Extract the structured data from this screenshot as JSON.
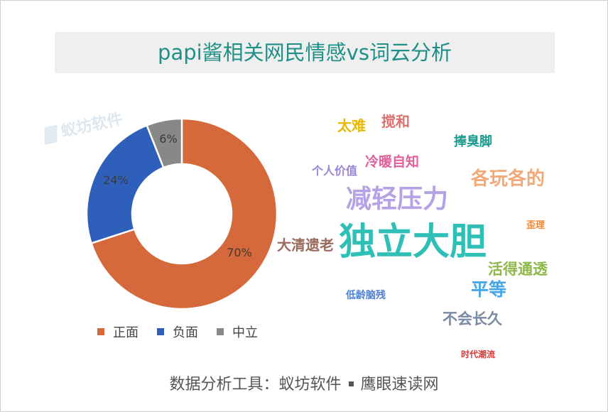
{
  "title": "papi酱相关网民情感vs词云分析",
  "watermark": "蚁坊软件",
  "footer": {
    "prefix": "数据分析工具：",
    "tool1": "蚁坊软件",
    "tool2": "鹰眼速读网"
  },
  "chart_data": [
    {
      "type": "pie",
      "variant": "donut",
      "categories": [
        "正面",
        "负面",
        "中立"
      ],
      "values": [
        70,
        24,
        6
      ],
      "labels": [
        "70%",
        "24%",
        "6%"
      ],
      "colors": [
        "#d5693c",
        "#2e5fba",
        "#888888"
      ],
      "legend_position": "bottom"
    },
    {
      "type": "wordcloud",
      "words": [
        {
          "text": "太难",
          "color": "#e8b800"
        },
        {
          "text": "搅和",
          "color": "#e07070"
        },
        {
          "text": "捧臭脚",
          "color": "#1a9b8e"
        },
        {
          "text": "冷暖自知",
          "color": "#e0609a"
        },
        {
          "text": "个人价值",
          "color": "#9a85d8"
        },
        {
          "text": "各玩各的",
          "color": "#f2a97a"
        },
        {
          "text": "减轻压力",
          "color": "#b5a1e6"
        },
        {
          "text": "歪理",
          "color": "#f08a3a"
        },
        {
          "text": "大清遗老",
          "color": "#9b6a5c"
        },
        {
          "text": "独立大胆",
          "color": "#2ebfb7"
        },
        {
          "text": "活得通透",
          "color": "#8fb84a"
        },
        {
          "text": "平等",
          "color": "#46a6e8"
        },
        {
          "text": "低龄脑残",
          "color": "#4c7fd6"
        },
        {
          "text": "不会长久",
          "color": "#7a8aa3"
        },
        {
          "text": "时代潮流",
          "color": "#d63a3a"
        }
      ]
    }
  ]
}
